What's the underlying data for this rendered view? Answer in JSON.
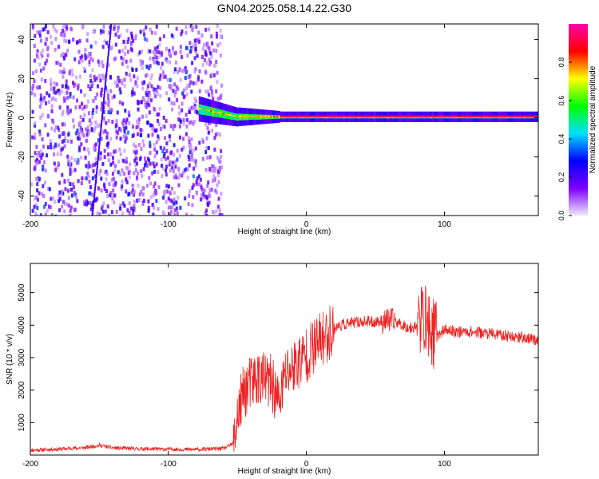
{
  "figure": {
    "title": "GN04.2025.058.14.22.G30"
  },
  "chart_data": [
    {
      "type": "heatmap",
      "xlabel": "Height of straight line (km)",
      "ylabel": "Frequency (Hz)",
      "xlim": [
        -200,
        168
      ],
      "ylim": [
        -50,
        48
      ],
      "x_ticks": [
        -200,
        -100,
        0,
        100
      ],
      "y_ticks": [
        -40,
        -20,
        0,
        20,
        40
      ],
      "colorbar": {
        "label": "Normalized spectral amplitude",
        "range": [
          0,
          1
        ],
        "ticks": [
          0.0,
          0.2,
          0.4,
          0.6,
          0.8
        ],
        "tick_labels": [
          "0.0",
          "0.2",
          "0.4",
          "0.6",
          "0.8"
        ],
        "colors": [
          "#f0e8ff",
          "#7b00ff",
          "#0000ff",
          "#00e0ff",
          "#00ff00",
          "#ffff00",
          "#ff0000",
          "#ff00aa"
        ]
      },
      "regions": [
        {
          "name": "noise",
          "x_range": [
            -200,
            -62
          ],
          "y_range": [
            -50,
            48
          ],
          "level": 0.15
        },
        {
          "name": "signal",
          "x_range": [
            -78,
            168
          ],
          "center_hz": 0.5,
          "level": 0.9
        }
      ]
    },
    {
      "type": "line",
      "xlabel": "Height of straight line (km)",
      "ylabel": "SNR (10 * v/v)",
      "xlim": [
        -200,
        168
      ],
      "ylim": [
        0,
        5900
      ],
      "x_ticks": [
        -200,
        -100,
        0,
        100
      ],
      "y_ticks": [
        1000,
        2000,
        3000,
        4000,
        5000
      ],
      "color": "#ee2222",
      "series": [
        {
          "x": [
            -200,
            -180,
            -160,
            -150,
            -140,
            -120,
            -100,
            -80,
            -60,
            -53,
            -50,
            -45,
            -40,
            -35,
            -30,
            -25,
            -20,
            -15,
            -10,
            -5,
            0,
            5,
            10,
            15,
            20,
            25,
            30,
            40,
            50,
            60,
            65,
            70,
            75,
            80,
            85,
            90,
            95,
            100,
            110,
            120,
            130,
            140,
            150,
            160,
            168
          ],
          "y": [
            150,
            180,
            230,
            300,
            220,
            190,
            180,
            170,
            200,
            350,
            1200,
            2000,
            2200,
            2400,
            2300,
            2200,
            1600,
            2500,
            2700,
            2900,
            3100,
            3300,
            3500,
            3700,
            3900,
            4000,
            4050,
            4100,
            4100,
            4150,
            4100,
            4000,
            3900,
            4000,
            4300,
            3800,
            3700,
            3850,
            3800,
            3800,
            3750,
            3700,
            3650,
            3600,
            3550
          ]
        }
      ]
    }
  ]
}
